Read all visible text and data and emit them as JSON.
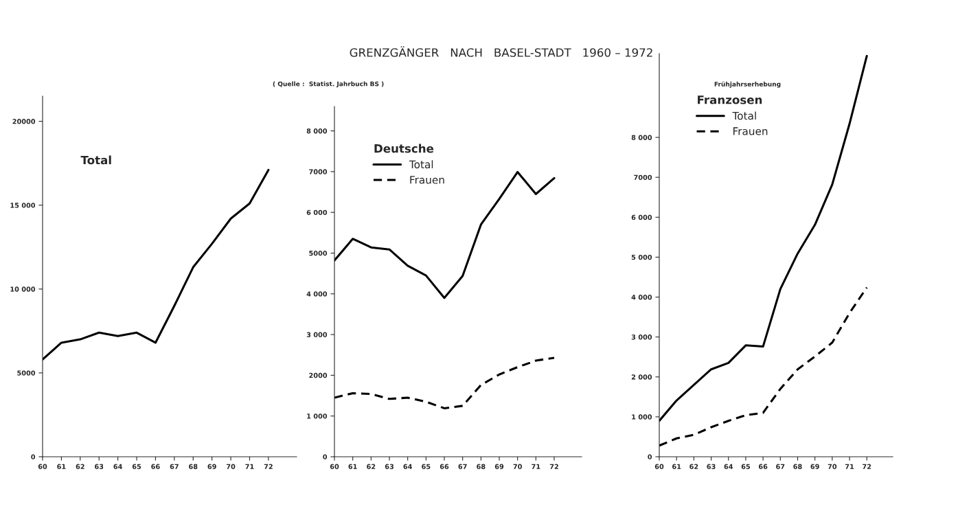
{
  "chart_data": [
    {
      "type": "line",
      "subtitle": "Total",
      "x": [
        60,
        61,
        62,
        63,
        64,
        65,
        66,
        67,
        68,
        69,
        70,
        71,
        72
      ],
      "series": [
        {
          "color": "#000000",
          "line_style": "solid",
          "values": [
            5800,
            6800,
            7000,
            7400,
            7200,
            7400,
            6800,
            9000,
            11300,
            12700,
            14200,
            15100,
            17100
          ]
        }
      ],
      "xlim": [
        60,
        73.5
      ],
      "xticks": [
        60,
        61,
        62,
        63,
        64,
        65,
        66,
        67,
        68,
        69,
        70,
        71,
        72
      ],
      "ylim": [
        0,
        21500
      ],
      "yticks": [
        0,
        5000,
        {
          "value": 10000,
          "label": "10 000"
        },
        {
          "value": 15000,
          "label": "15 000"
        },
        20000
      ],
      "grid": false,
      "marker": "none"
    },
    {
      "type": "line",
      "title": "GRENZGÄNGER   NACH   BASEL-STADT   1960 – 1972",
      "annotations": [
        "( Quelle :  Statist. Jahrbuch BS )"
      ],
      "legend_title": "Deutsche",
      "legend": "top left",
      "x": [
        60,
        61,
        62,
        63,
        64,
        65,
        66,
        67,
        68,
        69,
        70,
        71,
        72
      ],
      "series": [
        {
          "name": "Total",
          "color": "#000000",
          "line_style": "solid",
          "values": [
            4820,
            5350,
            5140,
            5090,
            4690,
            4450,
            3900,
            4440,
            5700,
            6330,
            6990,
            6450,
            6840
          ]
        },
        {
          "name": "Frauen",
          "color": "#000000",
          "line_style": "dashed",
          "values": [
            1450,
            1560,
            1540,
            1420,
            1450,
            1350,
            1190,
            1250,
            1760,
            2020,
            2200,
            2360,
            2430
          ]
        }
      ],
      "xlim": [
        60,
        73.5
      ],
      "xticks": [
        60,
        61,
        62,
        63,
        64,
        65,
        66,
        67,
        68,
        69,
        70,
        71,
        72
      ],
      "ylim": [
        0,
        8600
      ],
      "yticks": [
        0,
        {
          "value": 1000,
          "label": "1 000"
        },
        2000,
        {
          "value": 3000,
          "label": "3 000"
        },
        {
          "value": 4000,
          "label": "4 000"
        },
        5000,
        {
          "value": 6000,
          "label": "6 000"
        },
        7000,
        {
          "value": 8000,
          "label": "8 000"
        }
      ],
      "grid": false,
      "marker": "none"
    },
    {
      "type": "line",
      "annotations": [
        "Frühjahrserhebung"
      ],
      "legend_title": "Franzosen",
      "legend": "top left",
      "x": [
        60,
        61,
        62,
        63,
        64,
        65,
        66,
        67,
        68,
        69,
        70,
        71,
        72
      ],
      "series": [
        {
          "name": "Total",
          "color": "#000000",
          "line_style": "solid",
          "values": [
            900,
            1410,
            1800,
            2190,
            2350,
            2790,
            2760,
            4200,
            5090,
            5810,
            6820,
            8340,
            10040
          ]
        },
        {
          "name": "Frauen",
          "color": "#000000",
          "line_style": "dashed",
          "values": [
            280,
            460,
            550,
            740,
            900,
            1040,
            1100,
            1700,
            2190,
            2510,
            2860,
            3600,
            4240
          ]
        }
      ],
      "xlim": [
        60,
        73.5
      ],
      "xticks": [
        60,
        61,
        62,
        63,
        64,
        65,
        66,
        67,
        68,
        69,
        70,
        71,
        72
      ],
      "ylim": [
        0,
        10100
      ],
      "yticks": [
        0,
        {
          "value": 1000,
          "label": "1 000"
        },
        {
          "value": 2000,
          "label": "2 000"
        },
        {
          "value": 3000,
          "label": "3 000"
        },
        {
          "value": 4000,
          "label": "4 000"
        },
        {
          "value": 5000,
          "label": "5 000"
        },
        {
          "value": 6000,
          "label": "6 000"
        },
        7000,
        {
          "value": 8000,
          "label": "8 000"
        }
      ],
      "grid": false,
      "marker": "none"
    }
  ]
}
